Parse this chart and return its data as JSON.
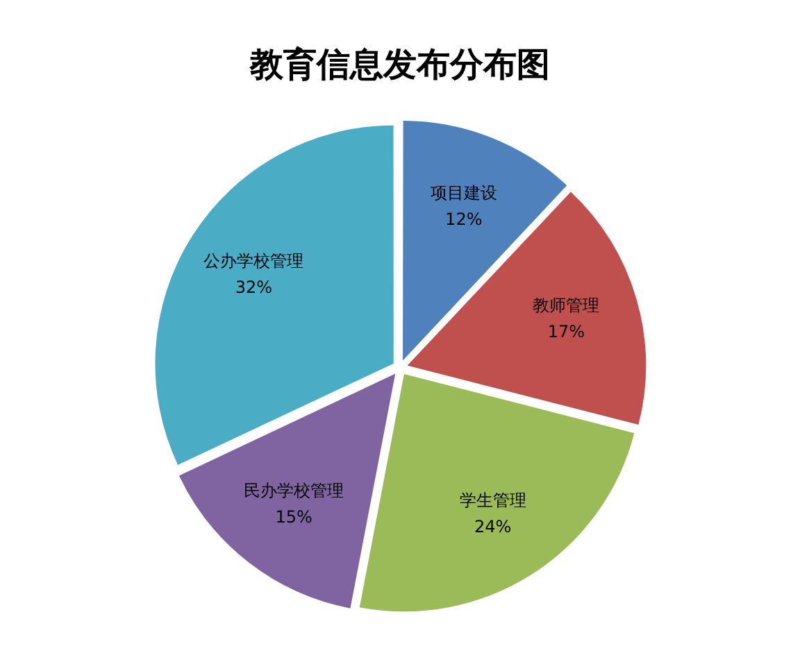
{
  "chart_data": {
    "type": "pie",
    "title": "教育信息发布分布图",
    "categories": [
      "项目建设",
      "教师管理",
      "学生管理",
      "民办学校管理",
      "公办学校管理"
    ],
    "values": [
      12,
      17,
      24,
      15,
      32
    ],
    "colors": [
      "#4f81bd",
      "#c0504d",
      "#9bbb59",
      "#8064a2",
      "#4bacc6"
    ],
    "value_labels": [
      "12%",
      "17%",
      "24%",
      "15%",
      "32%"
    ],
    "legend": false
  }
}
